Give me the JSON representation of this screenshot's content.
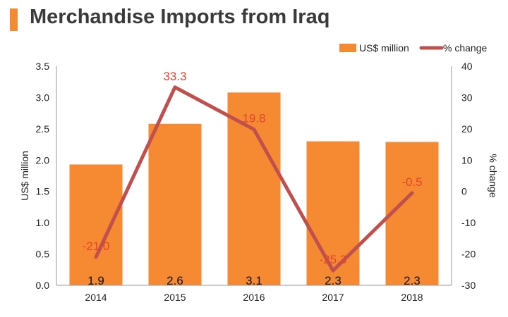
{
  "page": {
    "title": "Merchandise Imports from Iraq"
  },
  "chart_data": {
    "type": "bar+line",
    "title": "Merchandise Imports from Iraq",
    "categories": [
      "2014",
      "2015",
      "2016",
      "2017",
      "2018"
    ],
    "series": [
      {
        "name": "US$ million",
        "type": "bar",
        "axis": "left",
        "values": [
          1.93,
          2.58,
          3.08,
          2.3,
          2.29
        ],
        "labels": [
          "1.9",
          "2.6",
          "3.1",
          "2.3",
          "2.3"
        ]
      },
      {
        "name": "% change",
        "type": "line",
        "axis": "right",
        "values": [
          -21.0,
          33.3,
          19.8,
          -25.3,
          -0.5
        ],
        "labels": [
          "-21.0",
          "33.3",
          "19.8",
          "-25.3",
          "-0.5"
        ]
      }
    ],
    "y_left": {
      "label": "US$ million",
      "range": [
        0,
        3.5
      ],
      "ticks": [
        "0.0",
        "0.5",
        "1.0",
        "1.5",
        "2.0",
        "2.5",
        "3.0",
        "3.5"
      ]
    },
    "y_right": {
      "label": "% change",
      "range": [
        -30,
        40
      ],
      "ticks": [
        "-30",
        "-20",
        "-10",
        "0",
        "10",
        "20",
        "30",
        "40"
      ]
    },
    "legend": {
      "position": "top-right"
    },
    "grid": false,
    "colors": {
      "bar": "#f58a32",
      "line": "#c0504d",
      "line_label": "#e0462e",
      "accent": "#f58a32",
      "text": "#222222"
    }
  }
}
